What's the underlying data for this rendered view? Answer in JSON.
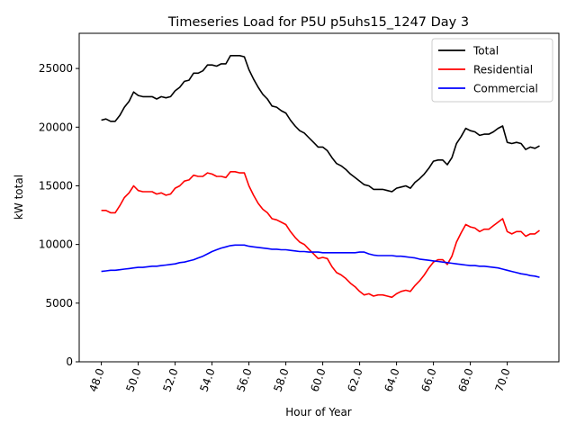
{
  "chart_data": {
    "type": "line",
    "title": "Timeseries Load for P5U p5uhs15_1247  Day 3",
    "xlabel": "Hour of Year",
    "ylabel": "kW total",
    "xlim": [
      46.8,
      72.8
    ],
    "ylim": [
      0,
      28000
    ],
    "xticks": [
      48,
      50,
      52,
      54,
      56,
      58,
      60,
      62,
      64,
      66,
      68,
      70
    ],
    "xtick_labels": [
      "48.0",
      "50.0",
      "52.0",
      "54.0",
      "56.0",
      "58.0",
      "60.0",
      "62.0",
      "64.0",
      "66.0",
      "68.0",
      "70.0"
    ],
    "yticks": [
      0,
      5000,
      10000,
      15000,
      20000,
      25000
    ],
    "ytick_labels": [
      "0",
      "5000",
      "10000",
      "15000",
      "20000",
      "25000"
    ],
    "grid": false,
    "legend_position": "top-right",
    "x": [
      48.0,
      48.25,
      48.5,
      48.75,
      49.0,
      49.25,
      49.5,
      49.75,
      50.0,
      50.25,
      50.5,
      50.75,
      51.0,
      51.25,
      51.5,
      51.75,
      52.0,
      52.25,
      52.5,
      52.75,
      53.0,
      53.25,
      53.5,
      53.75,
      54.0,
      54.25,
      54.5,
      54.75,
      55.0,
      55.25,
      55.5,
      55.75,
      56.0,
      56.25,
      56.5,
      56.75,
      57.0,
      57.25,
      57.5,
      57.75,
      58.0,
      58.25,
      58.5,
      58.75,
      59.0,
      59.25,
      59.5,
      59.75,
      60.0,
      60.25,
      60.5,
      60.75,
      61.0,
      61.25,
      61.5,
      61.75,
      62.0,
      62.25,
      62.5,
      62.75,
      63.0,
      63.25,
      63.5,
      63.75,
      64.0,
      64.25,
      64.5,
      64.75,
      65.0,
      65.25,
      65.5,
      65.75,
      66.0,
      66.25,
      66.5,
      66.75,
      67.0,
      67.25,
      67.5,
      67.75,
      68.0,
      68.25,
      68.5,
      68.75,
      69.0,
      69.25,
      69.5,
      69.75,
      70.0,
      70.25,
      70.5,
      70.75,
      71.0,
      71.25,
      71.5,
      71.75
    ],
    "series": [
      {
        "name": "Total",
        "color": "#000000",
        "values": [
          20600,
          20700,
          20500,
          20500,
          21000,
          21700,
          22200,
          23000,
          22700,
          22600,
          22600,
          22600,
          22400,
          22600,
          22500,
          22600,
          23100,
          23400,
          23900,
          24000,
          24600,
          24600,
          24800,
          25300,
          25300,
          25200,
          25400,
          25400,
          26100,
          26100,
          26100,
          26000,
          24900,
          24100,
          23400,
          22800,
          22400,
          21800,
          21700,
          21400,
          21200,
          20600,
          20100,
          19700,
          19500,
          19100,
          18700,
          18300,
          18300,
          18000,
          17400,
          16900,
          16700,
          16400,
          16000,
          15700,
          15400,
          15100,
          15000,
          14700,
          14700,
          14700,
          14600,
          14500,
          14800,
          14900,
          15000,
          14800,
          15300,
          15600,
          16000,
          16500,
          17100,
          17200,
          17200,
          16800,
          17400,
          18600,
          19200,
          19900,
          19700,
          19600,
          19300,
          19400,
          19400,
          19600,
          19900,
          20100,
          18700,
          18600,
          18700,
          18600,
          18100,
          18300,
          18200,
          18400
        ]
      },
      {
        "name": "Residential",
        "color": "#ff0000",
        "values": [
          12900,
          12900,
          12700,
          12700,
          13300,
          14000,
          14400,
          15000,
          14600,
          14500,
          14500,
          14500,
          14300,
          14400,
          14200,
          14300,
          14800,
          15000,
          15400,
          15500,
          15900,
          15800,
          15800,
          16100,
          16000,
          15800,
          15800,
          15700,
          16200,
          16200,
          16100,
          16100,
          15000,
          14200,
          13500,
          13000,
          12700,
          12200,
          12100,
          11900,
          11700,
          11100,
          10600,
          10200,
          10000,
          9600,
          9200,
          8800,
          8900,
          8800,
          8100,
          7600,
          7400,
          7100,
          6700,
          6400,
          6000,
          5700,
          5800,
          5600,
          5700,
          5700,
          5600,
          5500,
          5800,
          6000,
          6100,
          6000,
          6500,
          6900,
          7400,
          8000,
          8500,
          8700,
          8700,
          8300,
          9000,
          10200,
          11000,
          11700,
          11500,
          11400,
          11100,
          11300,
          11300,
          11600,
          11900,
          12200,
          11100,
          10900,
          11100,
          11100,
          10700,
          10900,
          10900,
          11200
        ]
      },
      {
        "name": "Commercial",
        "color": "#0000ff",
        "values": [
          7700,
          7750,
          7800,
          7800,
          7850,
          7900,
          7950,
          8000,
          8050,
          8050,
          8100,
          8150,
          8150,
          8200,
          8250,
          8300,
          8350,
          8450,
          8500,
          8600,
          8700,
          8850,
          9000,
          9200,
          9400,
          9550,
          9700,
          9800,
          9900,
          9950,
          9950,
          9950,
          9850,
          9800,
          9750,
          9700,
          9650,
          9600,
          9600,
          9550,
          9550,
          9500,
          9450,
          9400,
          9400,
          9350,
          9350,
          9350,
          9300,
          9300,
          9300,
          9300,
          9300,
          9300,
          9300,
          9300,
          9350,
          9350,
          9200,
          9100,
          9050,
          9050,
          9050,
          9050,
          9000,
          9000,
          8950,
          8900,
          8850,
          8750,
          8700,
          8650,
          8600,
          8550,
          8500,
          8450,
          8400,
          8350,
          8300,
          8250,
          8200,
          8200,
          8150,
          8150,
          8100,
          8050,
          8000,
          7900,
          7800,
          7700,
          7600,
          7500,
          7450,
          7350,
          7300,
          7200
        ]
      }
    ]
  }
}
